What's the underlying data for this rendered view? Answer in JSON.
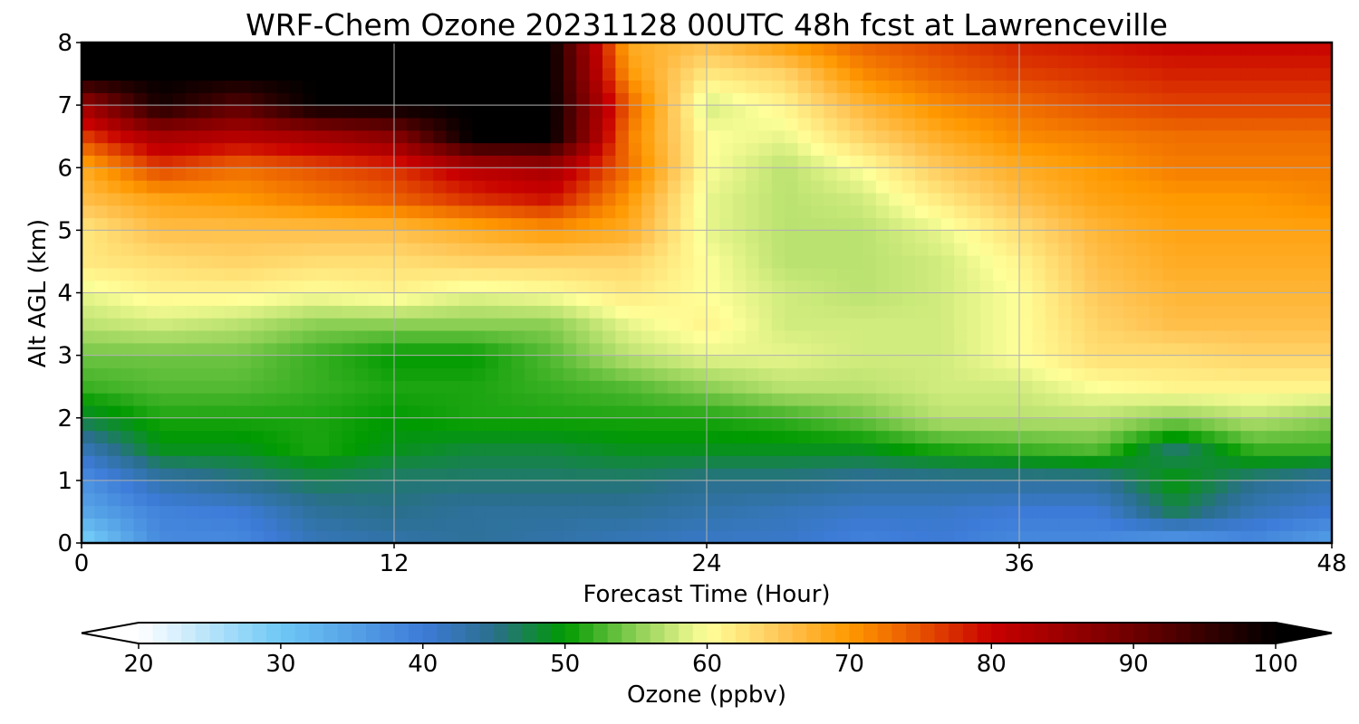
{
  "chart_data": {
    "type": "heatmap",
    "title": "WRF-Chem Ozone  20231128 00UTC 48h fcst at Lawrenceville",
    "xlabel": "Forecast Time (Hour)",
    "ylabel": "Alt AGL (km)",
    "xlim": [
      0,
      48
    ],
    "ylim": [
      0,
      8
    ],
    "xticks": [
      0,
      12,
      24,
      36,
      48
    ],
    "yticks": [
      0,
      1,
      2,
      3,
      4,
      5,
      6,
      7,
      8
    ],
    "grid": true,
    "x": [
      0,
      3,
      6,
      9,
      12,
      15,
      18,
      21,
      24,
      27,
      30,
      33,
      36,
      39,
      42,
      45,
      48
    ],
    "y": [
      0,
      0.5,
      1,
      1.5,
      2,
      2.5,
      3,
      3.5,
      4,
      4.5,
      5,
      5.5,
      6,
      6.5,
      7,
      7.5,
      8
    ],
    "z": [
      [
        28,
        38,
        38,
        42,
        43,
        44,
        43,
        42,
        41,
        41,
        39,
        40,
        38,
        38,
        35,
        38,
        35
      ],
      [
        34,
        39,
        40,
        44,
        45,
        44,
        44,
        44,
        43,
        42,
        41,
        41,
        40,
        40,
        47,
        42,
        40
      ],
      [
        37,
        43,
        45,
        47,
        46,
        46,
        46,
        46,
        45,
        45,
        44,
        44,
        44,
        44,
        50,
        45,
        43
      ],
      [
        42,
        49,
        49,
        51,
        49,
        48,
        48,
        49,
        49,
        49,
        49,
        51,
        52,
        53,
        46,
        52,
        52
      ],
      [
        48,
        51,
        51,
        51,
        50,
        51,
        51,
        51,
        51,
        52,
        54,
        57,
        57,
        57,
        55,
        57,
        55
      ],
      [
        52,
        53,
        53,
        52,
        51,
        51,
        52,
        53,
        55,
        57,
        57,
        58,
        58,
        60,
        61,
        61,
        61
      ],
      [
        54,
        54,
        54,
        52,
        50,
        50,
        53,
        57,
        59,
        59,
        58,
        58,
        60,
        63,
        63,
        64,
        64
      ],
      [
        57,
        58,
        57,
        55,
        55,
        55,
        55,
        59,
        61,
        58,
        58,
        58,
        60,
        64,
        66,
        66,
        66
      ],
      [
        59,
        61,
        61,
        60,
        61,
        59,
        60,
        62,
        60,
        58,
        57,
        58,
        60,
        65,
        67,
        67,
        67
      ],
      [
        62,
        63,
        64,
        63,
        63,
        64,
        64,
        64,
        60,
        57,
        57,
        58,
        61,
        66,
        68,
        68,
        68
      ],
      [
        62,
        66,
        66,
        66,
        66,
        68,
        70,
        68,
        59,
        57,
        57,
        59,
        63,
        67,
        69,
        69,
        69
      ],
      [
        66,
        69,
        70,
        72,
        74,
        77,
        79,
        70,
        59,
        57,
        58,
        62,
        66,
        69,
        70,
        70,
        71
      ],
      [
        68,
        76,
        73,
        75,
        77,
        82,
        84,
        73,
        60,
        57,
        60,
        65,
        68,
        70,
        72,
        72,
        72
      ],
      [
        76,
        84,
        82,
        84,
        87,
        100,
        100,
        72,
        60,
        59,
        64,
        68,
        71,
        72,
        73,
        73,
        73
      ],
      [
        84,
        98,
        92,
        100,
        100,
        100,
        100,
        74,
        58,
        61,
        67,
        71,
        73,
        75,
        76,
        76,
        76
      ],
      [
        100,
        100,
        100,
        100,
        100,
        100,
        100,
        70,
        62,
        64,
        71,
        74,
        76,
        77,
        78,
        78,
        78
      ],
      [
        100,
        100,
        100,
        100,
        100,
        100,
        100,
        68,
        66,
        70,
        74,
        76,
        78,
        79,
        80,
        80,
        80
      ]
    ],
    "colorbar": {
      "label": "Ozone  (ppbv)",
      "min": 20,
      "max": 100,
      "ticks": [
        20,
        30,
        40,
        50,
        60,
        70,
        80,
        90,
        100
      ],
      "extend": "both",
      "stops": [
        {
          "v": 20,
          "c": "#ffffff"
        },
        {
          "v": 30,
          "c": "#6ec8f5"
        },
        {
          "v": 40,
          "c": "#3d7bd8"
        },
        {
          "v": 45,
          "c": "#2a6f8c"
        },
        {
          "v": 50,
          "c": "#009a00"
        },
        {
          "v": 55,
          "c": "#8ccf55"
        },
        {
          "v": 60,
          "c": "#ffff99"
        },
        {
          "v": 65,
          "c": "#ffc85a"
        },
        {
          "v": 70,
          "c": "#ff9900"
        },
        {
          "v": 75,
          "c": "#e65200"
        },
        {
          "v": 80,
          "c": "#c80000"
        },
        {
          "v": 90,
          "c": "#6e0000"
        },
        {
          "v": 100,
          "c": "#000000"
        }
      ]
    }
  }
}
